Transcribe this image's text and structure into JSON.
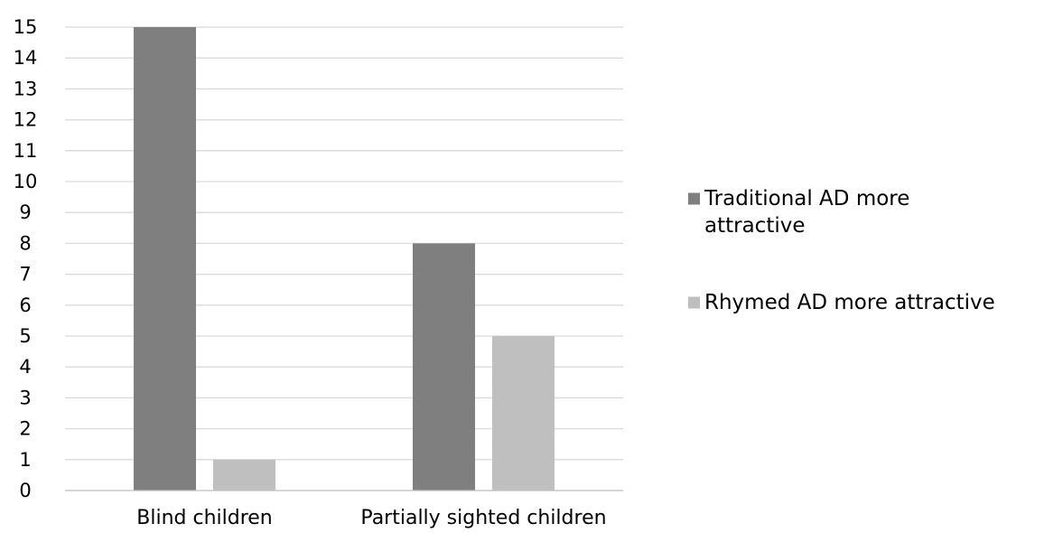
{
  "chart_data": {
    "type": "bar",
    "title": "",
    "xlabel": "",
    "ylabel": "",
    "categories": [
      "Blind children",
      "Partially sighted children"
    ],
    "series": [
      {
        "name": "Traditional AD more attractive",
        "values": [
          15,
          8
        ],
        "color": "#7f7f7f"
      },
      {
        "name": "Rhymed AD more attractive",
        "values": [
          1,
          5
        ],
        "color": "#bfbfbf"
      }
    ],
    "ylim": [
      0,
      15
    ],
    "yticks": [
      "0",
      "1",
      "2",
      "3",
      "4",
      "5",
      "6",
      "7",
      "8",
      "9",
      "10",
      "11",
      "12",
      "13",
      "14",
      "15"
    ],
    "grid": true,
    "legend_position": "right",
    "legend_lines": [
      [
        "Traditional AD more",
        "attractive"
      ],
      [
        "Rhymed AD more attractive"
      ]
    ]
  }
}
